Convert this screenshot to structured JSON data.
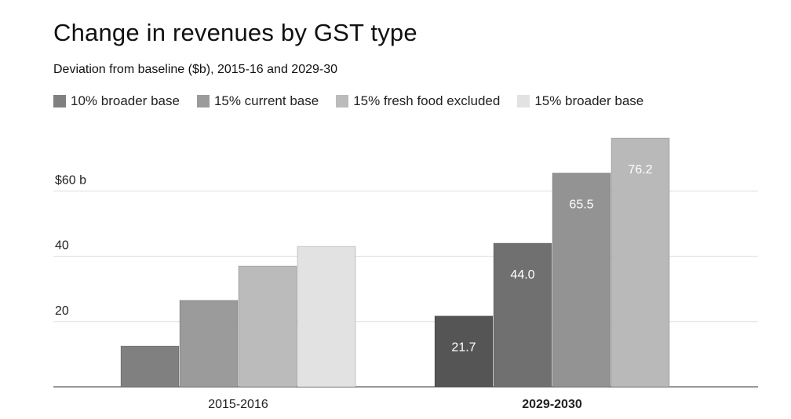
{
  "chart_data": {
    "type": "bar",
    "title": "Change in revenues by GST type",
    "subtitle": "Deviation from baseline ($b), 2015-16 and 2029-30",
    "categories": [
      "2015-2016",
      "2029-2030"
    ],
    "category_bold": [
      false,
      true
    ],
    "series": [
      {
        "name": "10% broader base",
        "values": [
          12.5,
          21.7
        ],
        "colors": [
          "#808080",
          "#555555"
        ],
        "show_labels": [
          false,
          true
        ]
      },
      {
        "name": "15% current base",
        "values": [
          26.5,
          44.0
        ],
        "colors": [
          "#9b9b9b",
          "#707070"
        ],
        "show_labels": [
          false,
          true
        ]
      },
      {
        "name": "15% fresh food excluded",
        "values": [
          37.0,
          65.5
        ],
        "colors": [
          "#bbbbbb",
          "#939393"
        ],
        "show_labels": [
          false,
          true
        ]
      },
      {
        "name": "15% broader base",
        "values": [
          43.0,
          76.2
        ],
        "colors": [
          "#e2e2e2",
          "#b9b9b9"
        ],
        "show_labels": [
          false,
          true
        ]
      }
    ],
    "legend_colors": [
      "#808080",
      "#9b9b9b",
      "#bbbbbb",
      "#e2e2e2"
    ],
    "yticks": [
      {
        "value": 20,
        "label": "20"
      },
      {
        "value": 40,
        "label": "40"
      },
      {
        "value": 60,
        "label": "$60 b"
      }
    ],
    "ylim": [
      0,
      80
    ],
    "grid": true,
    "legend_position": "top-left"
  }
}
